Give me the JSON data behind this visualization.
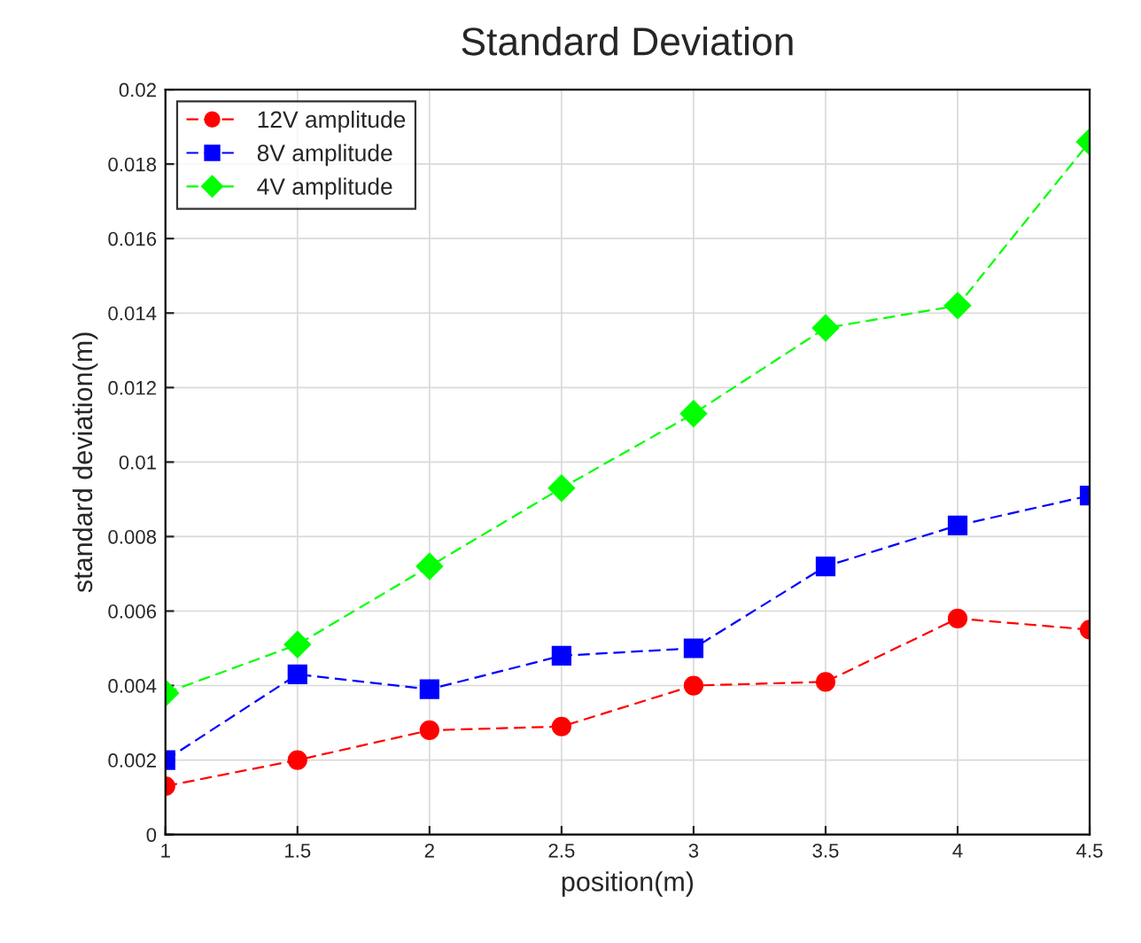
{
  "chart_data": {
    "type": "line",
    "title": "Standard Deviation",
    "xlabel": "position(m)",
    "ylabel": "standard deviation(m)",
    "x": [
      1,
      1.5,
      2,
      2.5,
      3,
      3.5,
      4,
      4.5
    ],
    "series": [
      {
        "name": "12V amplitude",
        "color": "#ff0000",
        "marker": "circle",
        "values": [
          0.0013,
          0.002,
          0.0028,
          0.0029,
          0.004,
          0.0041,
          0.0058,
          0.0055
        ]
      },
      {
        "name": "8V amplitude",
        "color": "#0000ff",
        "marker": "square",
        "values": [
          0.002,
          0.0043,
          0.0039,
          0.0048,
          0.005,
          0.0072,
          0.0083,
          0.0091
        ]
      },
      {
        "name": "4V amplitude",
        "color": "#00ff00",
        "marker": "diamond",
        "values": [
          0.0038,
          0.0051,
          0.0072,
          0.0093,
          0.0113,
          0.0136,
          0.0142,
          0.0186
        ]
      }
    ],
    "xlim": [
      1,
      4.5
    ],
    "xticks": [
      1,
      1.5,
      2,
      2.5,
      3,
      3.5,
      4,
      4.5
    ],
    "ylim": [
      0,
      0.02
    ],
    "yticks": [
      0,
      0.002,
      0.004,
      0.006,
      0.008,
      0.01,
      0.012,
      0.014,
      0.016,
      0.018,
      0.02
    ],
    "grid": true,
    "legend": "top left",
    "line_style": "dashed"
  }
}
